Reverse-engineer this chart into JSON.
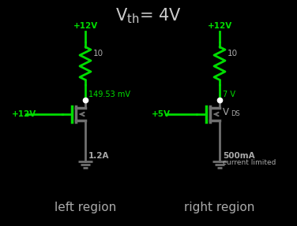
{
  "bg_color": "#000000",
  "title_color": "#cccccc",
  "title_fontsize": 15,
  "green": "#00dd00",
  "gray": "#707070",
  "white": "#ffffff",
  "label_color": "#aaaaaa",
  "left": {
    "v12_label": "+12V",
    "res_label": "10",
    "drain_label": "149.53 mV",
    "gate_label": "+12V",
    "current_label": "1.2A",
    "region_label": "left region"
  },
  "right": {
    "v12_label": "+12V",
    "res_label": "10",
    "drain_label": "7 V",
    "vds_label": "V",
    "vds_sub": "DS",
    "gate_label": "+5V",
    "current_label": "500mA",
    "current_label2": "current limited",
    "region_label": "right region"
  }
}
